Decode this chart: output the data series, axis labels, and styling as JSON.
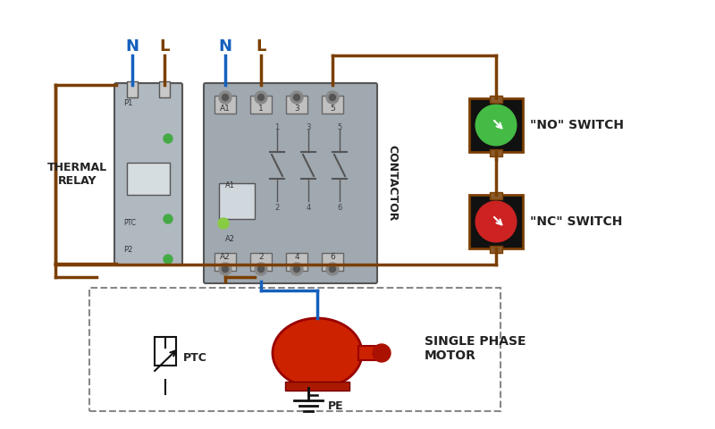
{
  "bg_color": "#ffffff",
  "wire_brown": "#7B3F00",
  "wire_blue": "#1560BD",
  "wire_black": "#111111",
  "relay_label": "THERMAL\nRELAY",
  "contactor_label": "CONTACTOR",
  "no_switch_label": "\"NO\" SWITCH",
  "nc_switch_label": "\"NC\" SWITCH",
  "motor_label": "SINGLE PHASE\nMOTOR",
  "ptc_label": "PTC",
  "pe_label": "PE",
  "n_label": "N",
  "l_label": "L",
  "relay_color": "#b0b8c0",
  "contactor_color": "#a0a8b0",
  "no_color": "#44bb44",
  "nc_color": "#cc2222",
  "motor_red": "#cc2200",
  "switch_bg": "#111111",
  "terminal_color": "#8B5A2B",
  "lw_wire": 2.5,
  "lw_device": 1.5
}
